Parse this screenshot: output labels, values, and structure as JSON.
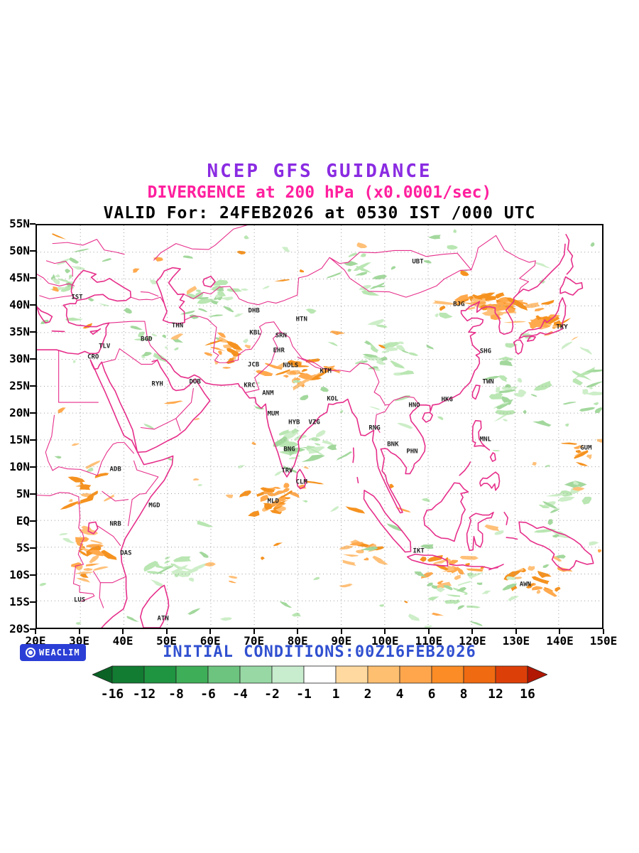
{
  "titles": {
    "line1": "NCEP GFS GUIDANCE",
    "line2": "DIVERGENCE at 200 hPa (x0.0001/sec)",
    "line3": "VALID For: 24FEB2026 at 0530 IST /000 UTC"
  },
  "footer": {
    "initial_conditions": "INITIAL CONDITIONS:00Z16FEB2026",
    "logo_text": "WEACLIM"
  },
  "axes": {
    "lat_labels": [
      "55N",
      "50N",
      "45N",
      "40N",
      "35N",
      "30N",
      "25N",
      "20N",
      "15N",
      "10N",
      "5N",
      "EQ",
      "5S",
      "10S",
      "15S",
      "20S"
    ],
    "lon_labels": [
      "20E",
      "30E",
      "40E",
      "50E",
      "60E",
      "70E",
      "80E",
      "90E",
      "100E",
      "110E",
      "120E",
      "130E",
      "140E",
      "150E"
    ],
    "lon_range": [
      20,
      150
    ],
    "lat_range": [
      -20,
      55
    ]
  },
  "stations": [
    {
      "label": "IST",
      "lon": 29.5,
      "lat": 41.3
    },
    {
      "label": "UBT",
      "lon": 107.5,
      "lat": 47.9
    },
    {
      "label": "BJG",
      "lon": 116.9,
      "lat": 40.0
    },
    {
      "label": "TKY",
      "lon": 140.5,
      "lat": 35.8
    },
    {
      "label": "THN",
      "lon": 52.5,
      "lat": 36.0
    },
    {
      "label": "DHB",
      "lon": 70.0,
      "lat": 38.8
    },
    {
      "label": "HTN",
      "lon": 80.9,
      "lat": 37.3
    },
    {
      "label": "KBL",
      "lon": 70.3,
      "lat": 34.8
    },
    {
      "label": "SRN",
      "lon": 76.2,
      "lat": 34.2
    },
    {
      "label": "BGD",
      "lon": 45.4,
      "lat": 33.5
    },
    {
      "label": "TLV",
      "lon": 35.8,
      "lat": 32.2
    },
    {
      "label": "EHR",
      "lon": 75.7,
      "lat": 31.5
    },
    {
      "label": "CRO",
      "lon": 33.2,
      "lat": 30.2
    },
    {
      "label": "JCB",
      "lon": 69.9,
      "lat": 28.8
    },
    {
      "label": "NDLS",
      "lon": 78.4,
      "lat": 28.7
    },
    {
      "label": "KTM",
      "lon": 86.4,
      "lat": 27.6
    },
    {
      "label": "SHG",
      "lon": 123.0,
      "lat": 31.3
    },
    {
      "label": "RYH",
      "lon": 47.9,
      "lat": 25.3
    },
    {
      "label": "DUB",
      "lon": 56.5,
      "lat": 25.6
    },
    {
      "label": "KRC",
      "lon": 69.0,
      "lat": 25.0
    },
    {
      "label": "ANM",
      "lon": 73.2,
      "lat": 23.6
    },
    {
      "label": "KOL",
      "lon": 88.0,
      "lat": 22.5
    },
    {
      "label": "TWN",
      "lon": 123.6,
      "lat": 25.7
    },
    {
      "label": "HKG",
      "lon": 114.2,
      "lat": 22.4
    },
    {
      "label": "HNO",
      "lon": 106.7,
      "lat": 21.3
    },
    {
      "label": "MUM",
      "lon": 74.4,
      "lat": 19.8
    },
    {
      "label": "HYB",
      "lon": 79.2,
      "lat": 18.1
    },
    {
      "label": "VZG",
      "lon": 83.8,
      "lat": 18.1
    },
    {
      "label": "RNG",
      "lon": 97.6,
      "lat": 17.1
    },
    {
      "label": "BNK",
      "lon": 101.8,
      "lat": 14.1
    },
    {
      "label": "PHN",
      "lon": 106.2,
      "lat": 12.8
    },
    {
      "label": "MNL",
      "lon": 123.0,
      "lat": 15.0
    },
    {
      "label": "GUM",
      "lon": 146.0,
      "lat": 13.4
    },
    {
      "label": "BNG",
      "lon": 78.1,
      "lat": 13.1
    },
    {
      "label": "ADB",
      "lon": 38.3,
      "lat": 9.5
    },
    {
      "label": "TRV",
      "lon": 77.6,
      "lat": 9.2
    },
    {
      "label": "CLM",
      "lon": 80.9,
      "lat": 7.1
    },
    {
      "label": "MGD",
      "lon": 47.2,
      "lat": 2.7
    },
    {
      "label": "MLD",
      "lon": 74.4,
      "lat": 3.6
    },
    {
      "label": "NRB",
      "lon": 38.3,
      "lat": -0.7
    },
    {
      "label": "DAS",
      "lon": 40.7,
      "lat": -6.0
    },
    {
      "label": "IKT",
      "lon": 107.7,
      "lat": -5.6
    },
    {
      "label": "LUS",
      "lon": 30.1,
      "lat": -14.8
    },
    {
      "label": "AWN",
      "lon": 132.1,
      "lat": -11.8
    },
    {
      "label": "ATN",
      "lon": 49.2,
      "lat": -18.1
    }
  ],
  "colorbar": {
    "values": [
      "-16",
      "-12",
      "-8",
      "-6",
      "-4",
      "-2",
      "-1",
      "1",
      "2",
      "4",
      "6",
      "8",
      "12",
      "16"
    ],
    "segments": [
      "#117c32",
      "#1f9441",
      "#3fae58",
      "#6cc47e",
      "#98d8a4",
      "#c8ecce",
      "#ffffff",
      "#ffd9a0",
      "#ffbf70",
      "#ffa64d",
      "#fb8c26",
      "#ef6a10",
      "#dd3f08"
    ],
    "left_arrow": "#0a6325",
    "right_arrow": "#b11702"
  },
  "colors": {
    "title1": "#8a2be2",
    "title2": "#ff1f9e",
    "title3": "#000000",
    "footer_blue": "#3050d0",
    "logo_bg": "#2b3fd6",
    "coast": "#e62e8a",
    "grid": "#9a9a9a",
    "neg_shades": [
      "#b9e6b2",
      "#cdeec8",
      "#a3d89d"
    ],
    "pos_shades": [
      "#ffa94d",
      "#f5921f",
      "#ffc078"
    ]
  }
}
